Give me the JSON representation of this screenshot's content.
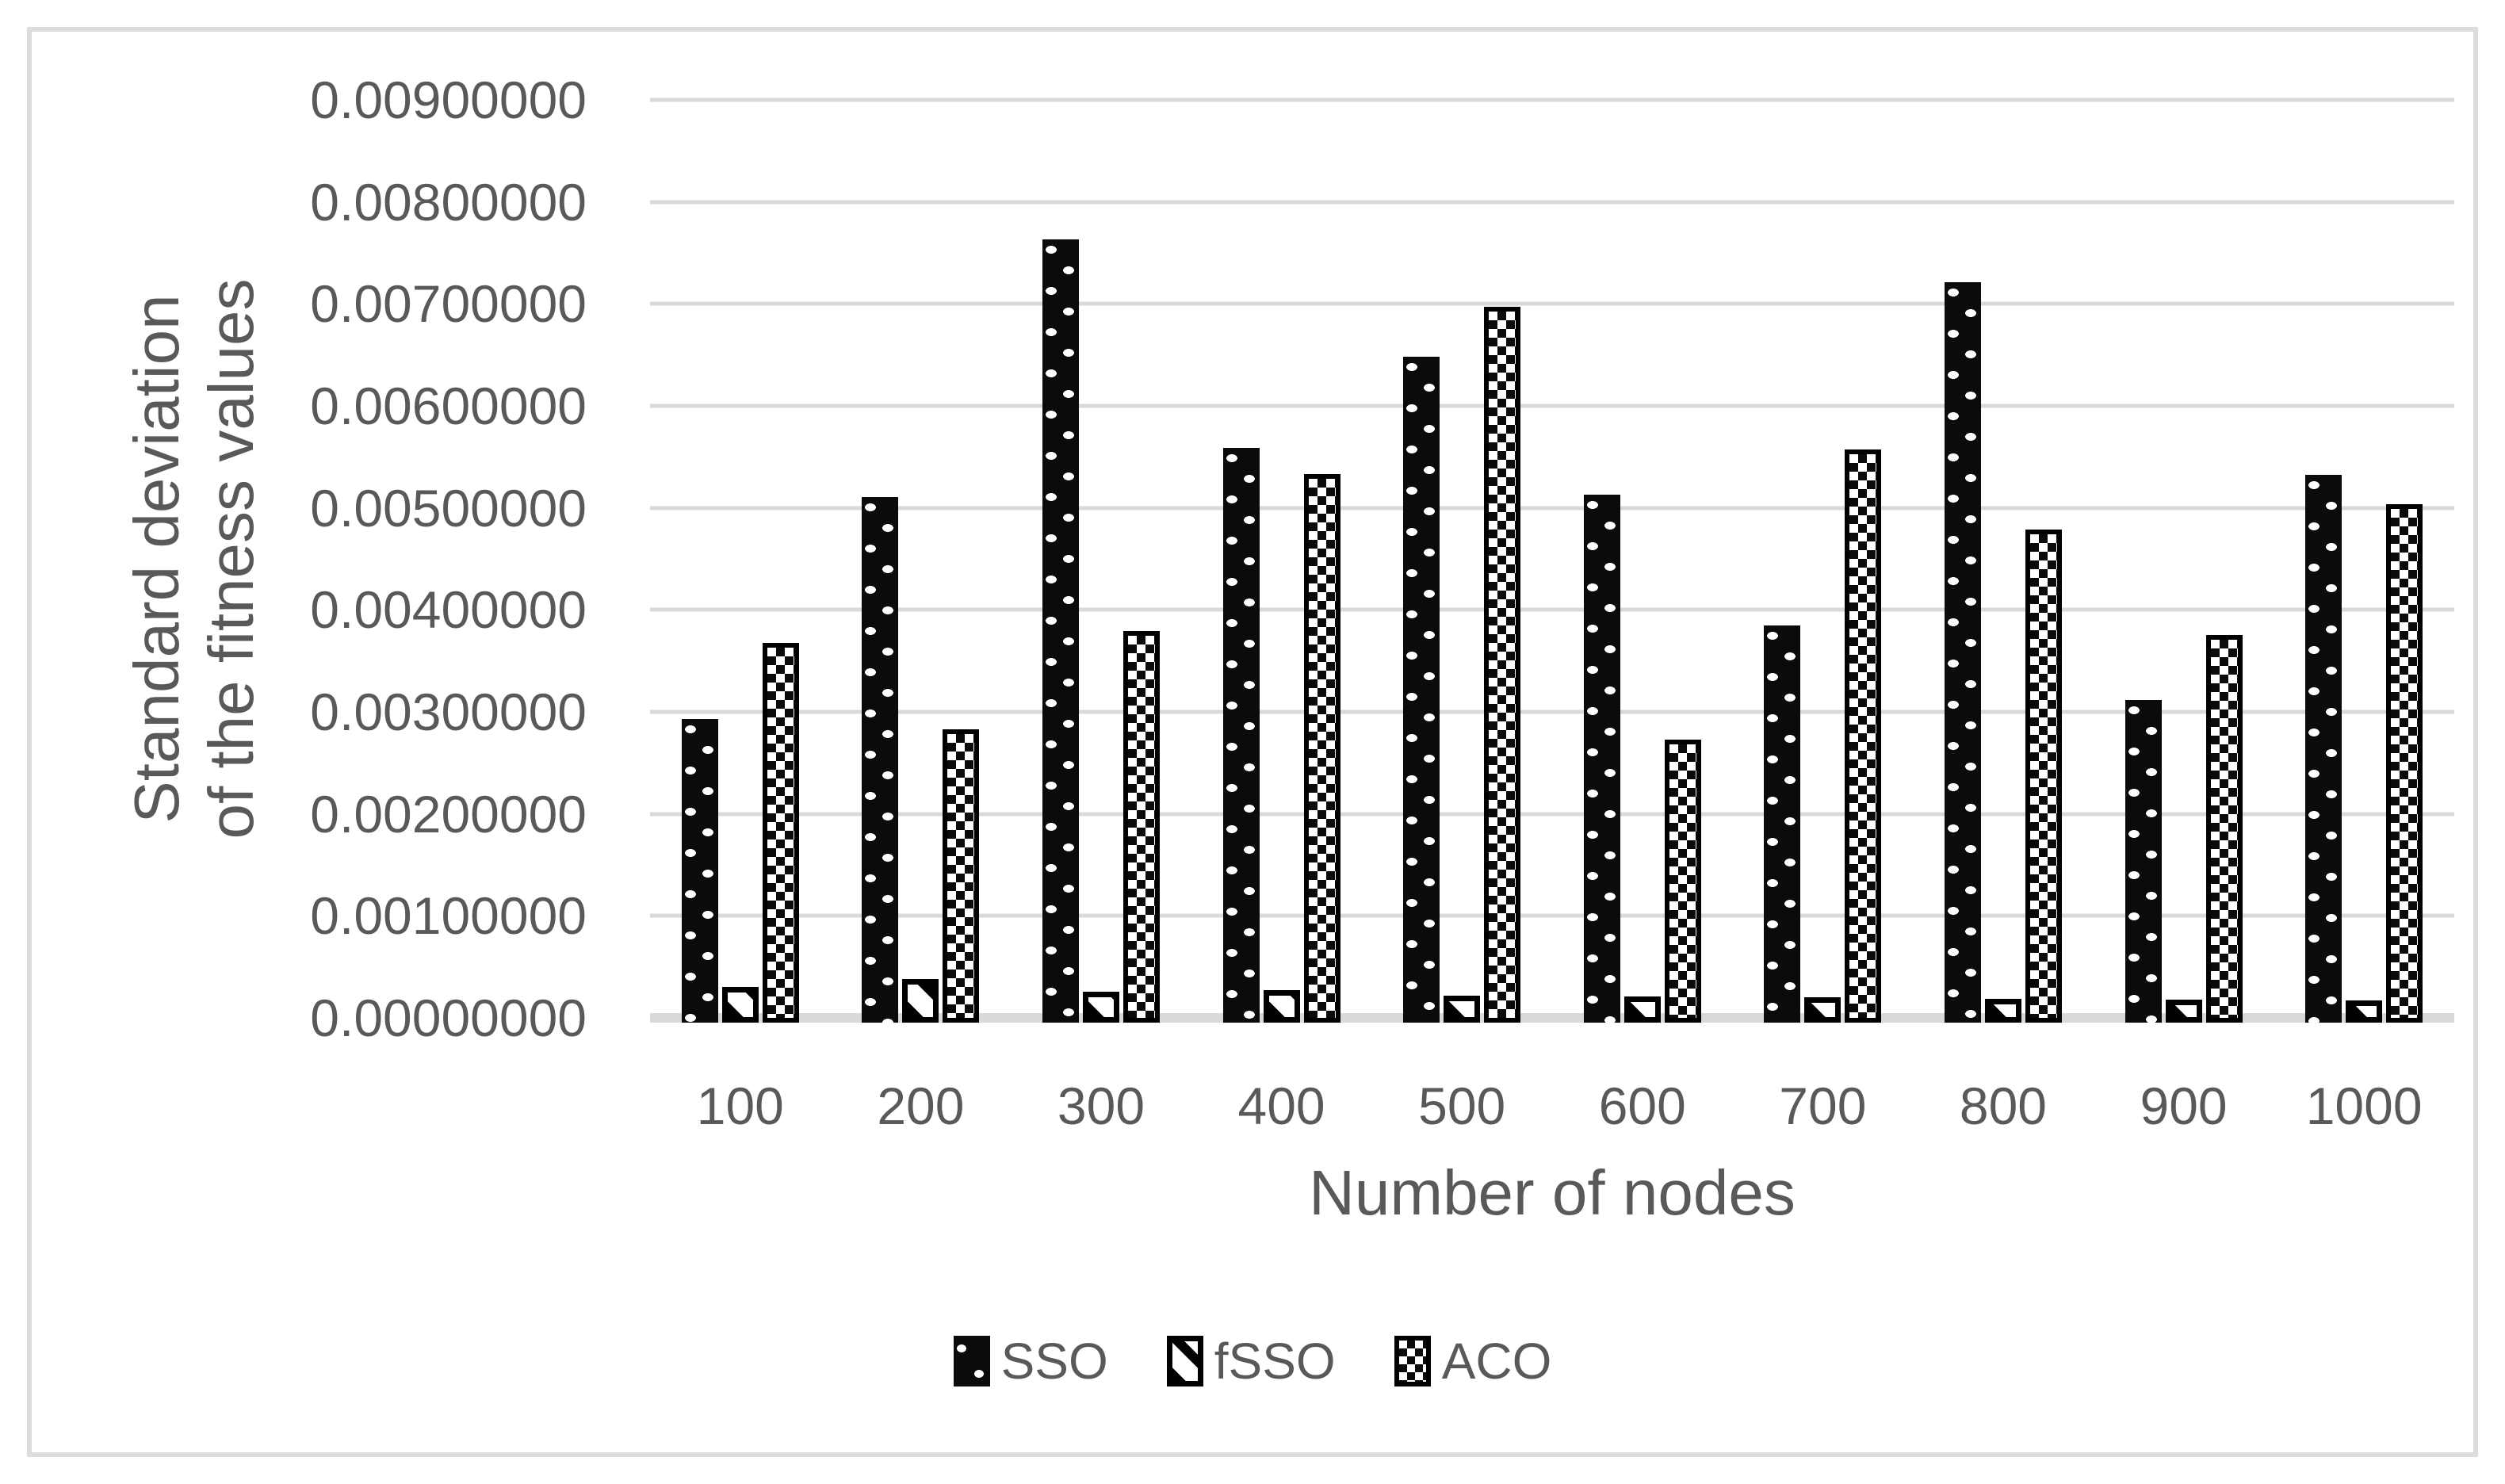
{
  "chart_data": {
    "type": "bar",
    "categories": [
      "100",
      "200",
      "300",
      "400",
      "500",
      "600",
      "700",
      "800",
      "900",
      "1000"
    ],
    "series": [
      {
        "name": "SSO",
        "pattern": "black-with-white-dots",
        "values": [
          0.00293,
          0.00511,
          0.00763,
          0.00559,
          0.00648,
          0.00513,
          0.00385,
          0.00721,
          0.00312,
          0.00532
        ]
      },
      {
        "name": "fSSO",
        "pattern": "white-with-black-diagonal-stripe",
        "values": [
          0.0003,
          0.00038,
          0.00026,
          0.00027,
          0.00022,
          0.00021,
          0.0002,
          0.00019,
          0.00018,
          0.00017
        ]
      },
      {
        "name": "ACO",
        "pattern": "black-white-checkerboard",
        "values": [
          0.00368,
          0.00283,
          0.00379,
          0.00533,
          0.00697,
          0.00273,
          0.00557,
          0.00479,
          0.00375,
          0.00504
        ]
      }
    ],
    "xlabel": "Number of nodes",
    "ylabel_lines": [
      "Standard deviation",
      "of the fitness values"
    ],
    "ylim": [
      0,
      0.009
    ],
    "ytick_step": 0.001,
    "ytick_labels": [
      "0.00900000",
      "0.00800000",
      "0.00700000",
      "0.00600000",
      "0.00500000",
      "0.00400000",
      "0.00300000",
      "0.00200000",
      "0.00100000",
      "0.00000000"
    ],
    "grid": true,
    "legend_position": "bottom",
    "legend_labels": [
      "SSO",
      "fSSO",
      "ACO"
    ]
  },
  "colors": {
    "background": "#ffffff",
    "frame_border": "#dcdcdc",
    "gridline": "#d9d9d9",
    "text": "#595959",
    "bar": "#0b0b0b"
  }
}
